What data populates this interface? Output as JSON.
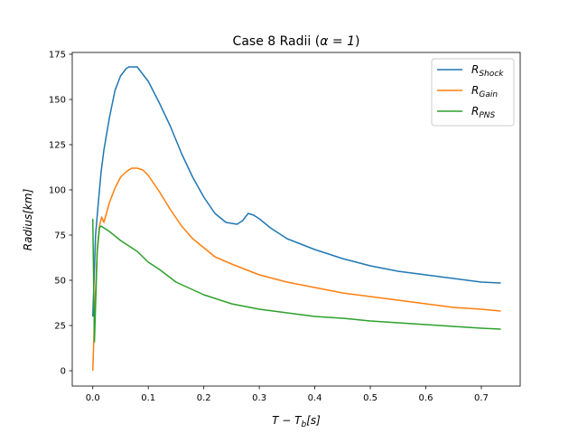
{
  "chart_data": {
    "type": "line",
    "title_prefix": "Case 8 Radii (",
    "title_alpha": "α = 1",
    "title_suffix": ")",
    "xlabel_main": "T − T",
    "xlabel_sub": "b",
    "xlabel_unit": "[s]",
    "ylabel": "Radius[km]",
    "xlim": [
      -0.037,
      0.77
    ],
    "ylim": [
      -8.5,
      176
    ],
    "xticks": [
      0.0,
      0.1,
      0.2,
      0.3,
      0.4,
      0.5,
      0.6,
      0.7
    ],
    "xtick_labels": [
      "0.0",
      "0.1",
      "0.2",
      "0.3",
      "0.4",
      "0.5",
      "0.6",
      "0.7"
    ],
    "yticks": [
      0,
      25,
      50,
      75,
      100,
      125,
      150,
      175
    ],
    "ytick_labels": [
      "0",
      "25",
      "50",
      "75",
      "100",
      "125",
      "150",
      "175"
    ],
    "grid": false,
    "legend_position": "top-right",
    "series": [
      {
        "name": "R",
        "name_sub": "Shock",
        "color": "#1f77b4",
        "x": [
          0.0,
          0.005,
          0.01,
          0.015,
          0.02,
          0.03,
          0.04,
          0.05,
          0.06,
          0.065,
          0.07,
          0.08,
          0.09,
          0.1,
          0.12,
          0.14,
          0.16,
          0.18,
          0.2,
          0.22,
          0.24,
          0.26,
          0.27,
          0.28,
          0.29,
          0.3,
          0.32,
          0.35,
          0.4,
          0.45,
          0.5,
          0.55,
          0.6,
          0.65,
          0.7,
          0.735
        ],
        "y": [
          30,
          75,
          93,
          110,
          122,
          140,
          155,
          163,
          167,
          168,
          168,
          168,
          164,
          160,
          148,
          135,
          120,
          107,
          96,
          87,
          82,
          81,
          83,
          87,
          86,
          84,
          79,
          73,
          67,
          62,
          58,
          55,
          53,
          51,
          49,
          48.5
        ]
      },
      {
        "name": "R",
        "name_sub": "Gain",
        "color": "#ff7f0e",
        "x": [
          0.0,
          0.003,
          0.008,
          0.012,
          0.016,
          0.02,
          0.03,
          0.04,
          0.05,
          0.06,
          0.07,
          0.08,
          0.09,
          0.1,
          0.12,
          0.14,
          0.16,
          0.18,
          0.2,
          0.22,
          0.25,
          0.3,
          0.35,
          0.4,
          0.45,
          0.5,
          0.55,
          0.6,
          0.65,
          0.7,
          0.735
        ],
        "y": [
          0,
          28,
          67,
          80,
          85,
          82,
          93,
          101,
          107,
          110,
          112,
          112,
          111,
          108,
          99,
          89,
          80,
          73,
          68,
          63,
          59,
          53,
          49,
          46,
          43,
          41,
          39,
          37,
          35,
          34,
          33
        ]
      },
      {
        "name": "R",
        "name_sub": "PNS",
        "color": "#2ca02c",
        "x": [
          0.0,
          0.003,
          0.008,
          0.012,
          0.015,
          0.02,
          0.03,
          0.05,
          0.08,
          0.1,
          0.12,
          0.15,
          0.2,
          0.25,
          0.3,
          0.35,
          0.4,
          0.45,
          0.5,
          0.55,
          0.6,
          0.65,
          0.7,
          0.735
        ],
        "y": [
          84,
          16,
          66,
          79,
          80,
          79,
          77,
          72,
          66,
          60,
          56,
          49,
          42,
          37,
          34,
          32,
          30,
          29,
          27.5,
          26.5,
          25.5,
          24.5,
          23.5,
          23
        ]
      }
    ]
  }
}
